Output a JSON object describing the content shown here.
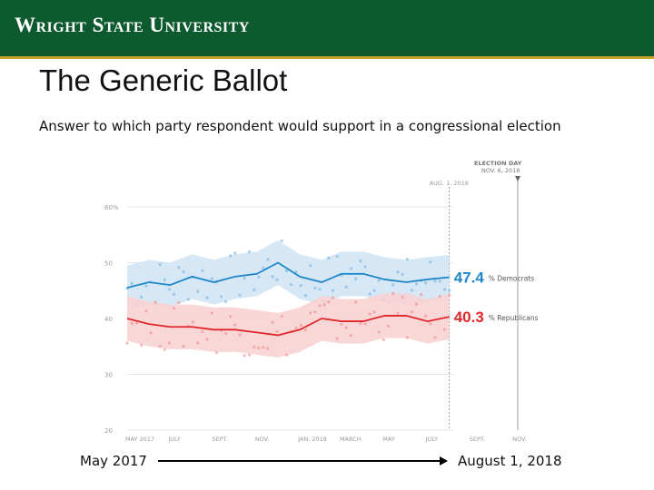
{
  "header": {
    "university": "Wright State University"
  },
  "slide": {
    "title": "The Generic Ballot",
    "subtitle": "Answer to which party respondent would support in a congressional election"
  },
  "timeline": {
    "start_label": "May 2017",
    "end_label": "August 1, 2018"
  },
  "colors": {
    "banner": "#0d5a2e",
    "democrat": "#1f86c8",
    "republican": "#e0262b"
  },
  "chart_data": {
    "type": "line",
    "x_ticks": [
      "MAY 2017",
      "JULY",
      "SEPT.",
      "NOV.",
      "JAN. 2018",
      "MARCH",
      "MAY",
      "JULY",
      "SEPT.",
      "NOV."
    ],
    "y_ticks": [
      "20",
      "30",
      "40",
      "50",
      "60%"
    ],
    "ylim": [
      20,
      60
    ],
    "xlim": [
      "2017-05-01",
      "2018-11-06"
    ],
    "markers": [
      {
        "label": "AUG. 1, 2018",
        "x": "2018-08-01"
      },
      {
        "label_line1": "ELECTION DAY",
        "label_line2": "NOV. 6, 2018",
        "x": "2018-11-06"
      }
    ],
    "series": [
      {
        "name": "% Democrats",
        "final_value": "47.4",
        "x": [
          "2017-05-01",
          "2017-06-01",
          "2017-07-01",
          "2017-08-01",
          "2017-09-01",
          "2017-10-01",
          "2017-11-01",
          "2017-12-01",
          "2018-01-01",
          "2018-02-01",
          "2018-03-01",
          "2018-04-01",
          "2018-05-01",
          "2018-06-01",
          "2018-07-01",
          "2018-08-01"
        ],
        "y": [
          45.5,
          46.5,
          46.0,
          47.5,
          46.5,
          47.5,
          48.0,
          50.0,
          47.5,
          46.5,
          48.0,
          48.0,
          47.0,
          46.5,
          47.0,
          47.4
        ]
      },
      {
        "name": "% Republicans",
        "final_value": "40.3",
        "x": [
          "2017-05-01",
          "2017-06-01",
          "2017-07-01",
          "2017-08-01",
          "2017-09-01",
          "2017-10-01",
          "2017-11-01",
          "2017-12-01",
          "2018-01-01",
          "2018-02-01",
          "2018-03-01",
          "2018-04-01",
          "2018-05-01",
          "2018-06-01",
          "2018-07-01",
          "2018-08-01"
        ],
        "y": [
          40.0,
          39.0,
          38.5,
          38.5,
          38.0,
          38.0,
          37.5,
          37.0,
          38.0,
          40.0,
          39.5,
          39.5,
          40.5,
          40.5,
          39.5,
          40.3
        ]
      }
    ]
  }
}
